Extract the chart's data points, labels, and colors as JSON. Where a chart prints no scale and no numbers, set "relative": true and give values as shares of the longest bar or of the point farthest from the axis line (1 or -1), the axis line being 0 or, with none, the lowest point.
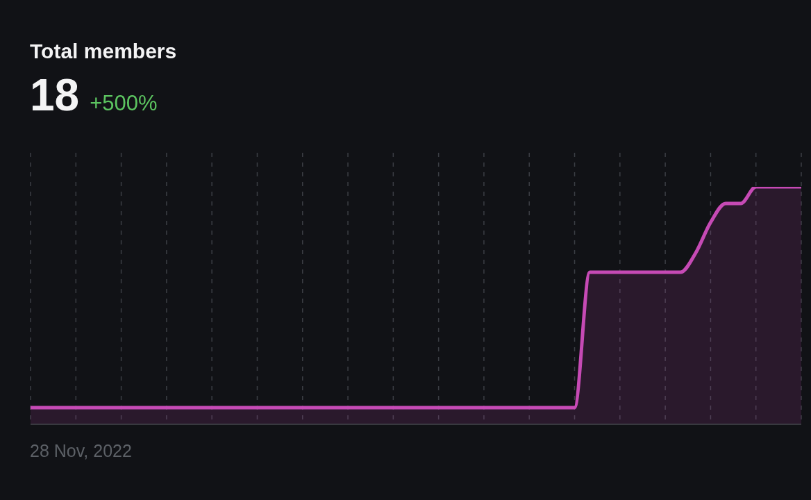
{
  "chart_data": {
    "type": "area",
    "title": "Total members",
    "subtitle": "18",
    "annotations": [
      "+500%",
      "28 Nov, 2022"
    ],
    "categories": [
      null,
      null,
      null,
      null,
      null,
      null,
      null,
      null,
      null,
      null,
      null,
      null,
      null,
      null,
      null,
      null,
      null,
      null,
      null,
      null,
      null,
      null,
      null,
      null,
      null,
      null,
      null,
      null,
      null,
      null,
      null,
      null,
      null,
      null,
      null,
      null,
      null,
      null,
      null,
      null,
      null,
      null,
      null,
      null,
      null,
      null,
      null,
      null,
      null,
      null,
      null,
      null
    ],
    "values": [
      0.07,
      0.07,
      0.07,
      0.07,
      0.07,
      0.07,
      0.07,
      0.07,
      0.07,
      0.07,
      0.07,
      0.07,
      0.07,
      0.07,
      0.07,
      0.07,
      0.07,
      0.07,
      0.07,
      0.07,
      0.07,
      0.07,
      0.07,
      0.07,
      0.07,
      0.07,
      0.07,
      0.07,
      0.07,
      0.07,
      0.07,
      0.07,
      0.07,
      0.07,
      0.07,
      0.07,
      0.07,
      0.64,
      0.64,
      0.64,
      0.64,
      0.64,
      0.64,
      0.64,
      0.72,
      0.85,
      0.93,
      0.93,
      1,
      1,
      1,
      1
    ],
    "color": "#c64ab5",
    "relative": true,
    "grid": "x"
  }
}
